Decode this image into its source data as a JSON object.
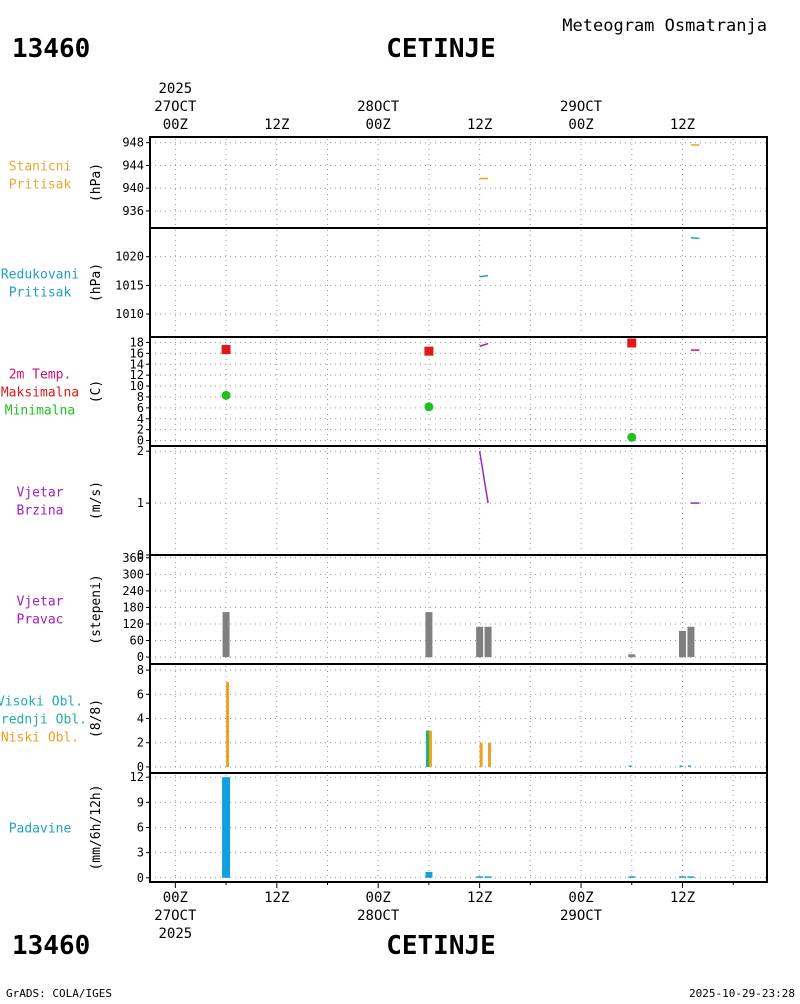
{
  "header": {
    "station_id": "13460",
    "station_name": "CETINJE",
    "meteogram_title": "Meteogram Osmatranja"
  },
  "footer": {
    "station_id": "13460",
    "station_name": "CETINJE",
    "credit": "GrADS: COLA/IGES",
    "timestamp": "2025-10-29-23:28"
  },
  "time_axis": {
    "year": "2025",
    "top_ticks": [
      {
        "hour": 0,
        "label": "00Z",
        "date": "27OCT",
        "year": "2025"
      },
      {
        "hour": 12,
        "label": "12Z",
        "date": "",
        "year": ""
      },
      {
        "hour": 24,
        "label": "00Z",
        "date": "28OCT",
        "year": ""
      },
      {
        "hour": 36,
        "label": "12Z",
        "date": "",
        "year": ""
      },
      {
        "hour": 48,
        "label": "00Z",
        "date": "29OCT",
        "year": ""
      },
      {
        "hour": 60,
        "label": "12Z",
        "date": "",
        "year": ""
      }
    ],
    "bottom_ticks": [
      {
        "hour": 0,
        "label": "00Z",
        "date": "27OCT",
        "year": "2025"
      },
      {
        "hour": 12,
        "label": "12Z",
        "date": "",
        "year": ""
      },
      {
        "hour": 24,
        "label": "00Z",
        "date": "28OCT",
        "year": ""
      },
      {
        "hour": 36,
        "label": "12Z",
        "date": "",
        "year": ""
      },
      {
        "hour": 48,
        "label": "00Z",
        "date": "29OCT",
        "year": ""
      },
      {
        "hour": 60,
        "label": "12Z",
        "date": "",
        "year": ""
      }
    ],
    "range_hours": [
      -3,
      70
    ]
  },
  "chart_data": [
    {
      "id": "station-pressure",
      "type": "line",
      "labels": [
        {
          "text": "Stanicni",
          "color": "#e8a838"
        },
        {
          "text": "Pritisak",
          "color": "#e8a838"
        }
      ],
      "ylabel": "(hPa)",
      "ylim": [
        933,
        949
      ],
      "yticks": [
        936,
        940,
        944,
        948
      ],
      "series": [
        {
          "name": "Stanicni Pritisak",
          "color": "#f0a020",
          "points": [
            [
              36,
              941.7
            ],
            [
              37,
              941.7
            ],
            [
              61,
              947.6
            ],
            [
              62,
              947.6
            ]
          ]
        }
      ]
    },
    {
      "id": "reduced-pressure",
      "type": "line",
      "labels": [
        {
          "text": "Redukovani",
          "color": "#20a0c8"
        },
        {
          "text": "Pritisak",
          "color": "#20a0c8"
        }
      ],
      "ylabel": "(hPa)",
      "ylim": [
        1006,
        1025
      ],
      "yticks": [
        1010,
        1015,
        1020
      ],
      "series": [
        {
          "name": "Redukovani Pritisak",
          "color": "#20a0c8",
          "points": [
            [
              36,
              1016.5
            ],
            [
              37,
              1016.7
            ],
            [
              61,
              1023.3
            ],
            [
              62,
              1023.2
            ]
          ]
        }
      ]
    },
    {
      "id": "temperature",
      "type": "scatter",
      "labels": [
        {
          "text": "2m Temp.",
          "color": "#d01070"
        },
        {
          "text": "Maksimalna",
          "color": "#e01818"
        },
        {
          "text": "Minimalna",
          "color": "#20c020"
        }
      ],
      "ylabel": "(C)",
      "ylim": [
        -1,
        19
      ],
      "yticks": [
        0,
        2,
        4,
        6,
        8,
        10,
        12,
        14,
        16,
        18
      ],
      "series": [
        {
          "name": "2m Temp.",
          "color": "#d01070",
          "line_points": [
            [
              36,
              17.3
            ],
            [
              37,
              17.8
            ],
            [
              61,
              16.6
            ],
            [
              62,
              16.6
            ]
          ]
        },
        {
          "name": "Maksimalna",
          "color": "#e01818",
          "marker": "square",
          "points": [
            [
              6,
              16.7
            ],
            [
              30,
              16.4
            ],
            [
              54,
              17.9
            ]
          ]
        },
        {
          "name": "Minimalna",
          "color": "#20c020",
          "marker": "circle",
          "points": [
            [
              6,
              8.3
            ],
            [
              30,
              6.2
            ],
            [
              54,
              0.6
            ]
          ]
        }
      ]
    },
    {
      "id": "wind-speed",
      "type": "line",
      "labels": [
        {
          "text": "Vjetar",
          "color": "#a020c0"
        },
        {
          "text": "Brzina",
          "color": "#a020c0"
        }
      ],
      "ylabel": "(m/s)",
      "ylim": [
        0,
        2.1
      ],
      "yticks": [
        0,
        1,
        2
      ],
      "series": [
        {
          "name": "Vjetar Brzina",
          "color": "#a020c0",
          "points": [
            [
              36,
              2.0
            ],
            [
              37,
              1.0
            ],
            [
              61,
              1.0
            ],
            [
              62,
              1.0
            ]
          ]
        }
      ]
    },
    {
      "id": "wind-direction",
      "type": "bar",
      "labels": [
        {
          "text": "Vjetar",
          "color": "#a020c0"
        },
        {
          "text": "Pravac",
          "color": "#a020c0"
        }
      ],
      "ylabel": "(stepeni)",
      "ylim": [
        -25,
        370
      ],
      "yticks": [
        0,
        60,
        120,
        180,
        240,
        300,
        360
      ],
      "series": [
        {
          "name": "Vjetar Pravac",
          "color": "#808080",
          "bars": [
            [
              6,
              163
            ],
            [
              30,
              163
            ],
            [
              36,
              110
            ],
            [
              37,
              110
            ],
            [
              54,
              10
            ],
            [
              60,
              95
            ],
            [
              61,
              110
            ]
          ]
        }
      ]
    },
    {
      "id": "cloud-cover",
      "type": "bar",
      "labels": [
        {
          "text": "Visoki Obl.",
          "color": "#20a8c0"
        },
        {
          "text": "Srednji Obl.",
          "color": "#20b0a0"
        },
        {
          "text": "Niski Obl.",
          "color": "#f0a020"
        }
      ],
      "ylabel": "(8/8)",
      "ylim": [
        -0.5,
        8.5
      ],
      "yticks": [
        0,
        2,
        4,
        6,
        8
      ],
      "series": [
        {
          "name": "Visoki Obl.",
          "color": "#20a8c0",
          "bars": [
            [
              30,
              3.0
            ],
            [
              54,
              0.1
            ],
            [
              60,
              0.1
            ],
            [
              61,
              0.1
            ]
          ]
        },
        {
          "name": "Srednji Obl.",
          "color": "#20c020",
          "bars": [
            [
              30,
              3.0
            ]
          ]
        },
        {
          "name": "Niski Obl.",
          "color": "#f0a020",
          "bars": [
            [
              6,
              7.0
            ],
            [
              30,
              3.0
            ],
            [
              36,
              2.0
            ],
            [
              37,
              2.0
            ]
          ]
        }
      ]
    },
    {
      "id": "precipitation",
      "type": "bar",
      "labels": [
        {
          "text": "Padavine",
          "color": "#20a0c8"
        }
      ],
      "ylabel": "(mm/6h/12h)",
      "ylim": [
        -0.5,
        12.5
      ],
      "yticks": [
        0,
        3,
        6,
        9,
        12
      ],
      "series": [
        {
          "name": "Padavine",
          "color": "#10a0e0",
          "bars": [
            [
              6,
              12.0
            ],
            [
              30,
              0.7
            ],
            [
              36,
              0.15
            ],
            [
              37,
              0.15
            ],
            [
              54,
              0.15
            ],
            [
              60,
              0.15
            ],
            [
              61,
              0.15
            ]
          ]
        }
      ]
    }
  ]
}
